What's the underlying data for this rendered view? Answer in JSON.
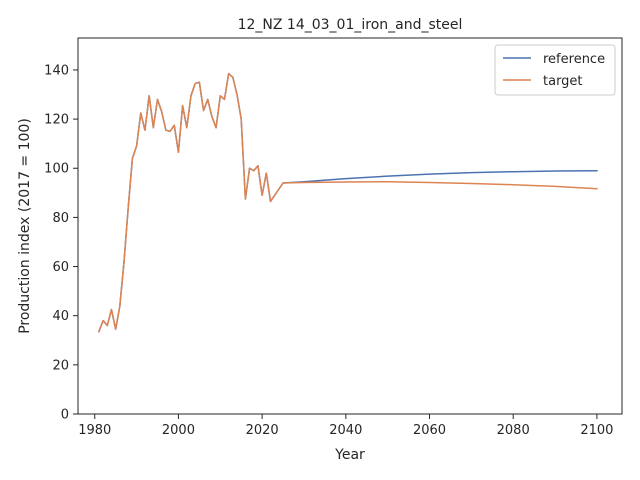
{
  "chart_data": {
    "type": "line",
    "title": "12_NZ 14_03_01_iron_and_steel",
    "xlabel": "Year",
    "ylabel": "Production index (2017 = 100)",
    "xlim": [
      1976,
      2106
    ],
    "ylim": [
      0,
      153
    ],
    "xticks": [
      1980,
      2000,
      2020,
      2040,
      2060,
      2080,
      2100
    ],
    "yticks": [
      0,
      20,
      40,
      60,
      80,
      100,
      120,
      140
    ],
    "grid": false,
    "legend_position": "upper right",
    "series": [
      {
        "name": "reference",
        "color": "#4c72b0",
        "x": [
          1981,
          1982,
          1983,
          1984,
          1985,
          1986,
          1987,
          1988,
          1989,
          1990,
          1991,
          1992,
          1993,
          1994,
          1995,
          1996,
          1997,
          1998,
          1999,
          2000,
          2001,
          2002,
          2003,
          2004,
          2005,
          2006,
          2007,
          2008,
          2009,
          2010,
          2011,
          2012,
          2013,
          2014,
          2015,
          2016,
          2017,
          2018,
          2019,
          2020,
          2021,
          2022,
          2025,
          2030,
          2040,
          2050,
          2060,
          2070,
          2080,
          2090,
          2100
        ],
        "y": [
          33.5,
          38,
          36,
          42.5,
          34.5,
          44,
          62,
          84,
          104,
          109,
          122.5,
          115.5,
          129.5,
          116.5,
          128,
          123,
          115.5,
          115,
          117.5,
          106.5,
          125.5,
          116.5,
          129.5,
          134.5,
          135,
          123.5,
          128,
          121,
          116.5,
          129.5,
          128,
          138.5,
          137,
          130,
          120,
          87.5,
          100,
          99,
          101,
          89,
          98,
          86.5,
          94,
          94.5,
          95.8,
          96.8,
          97.6,
          98.2,
          98.6,
          98.9,
          99
        ]
      },
      {
        "name": "target",
        "color": "#dd8452",
        "x": [
          1981,
          1982,
          1983,
          1984,
          1985,
          1986,
          1987,
          1988,
          1989,
          1990,
          1991,
          1992,
          1993,
          1994,
          1995,
          1996,
          1997,
          1998,
          1999,
          2000,
          2001,
          2002,
          2003,
          2004,
          2005,
          2006,
          2007,
          2008,
          2009,
          2010,
          2011,
          2012,
          2013,
          2014,
          2015,
          2016,
          2017,
          2018,
          2019,
          2020,
          2021,
          2022,
          2025,
          2030,
          2040,
          2050,
          2060,
          2070,
          2080,
          2090,
          2100
        ],
        "y": [
          33.5,
          38,
          36,
          42.5,
          34.5,
          44,
          62,
          84,
          104,
          109,
          122.5,
          115.5,
          129.5,
          116.5,
          128,
          123,
          115.5,
          115,
          117.5,
          106.5,
          125.5,
          116.5,
          129.5,
          134.5,
          135,
          123.5,
          128,
          121,
          116.5,
          129.5,
          128,
          138.5,
          137,
          130,
          120,
          87.5,
          100,
          99,
          101,
          89,
          98,
          86.5,
          94,
          94.2,
          94.4,
          94.5,
          94.2,
          93.8,
          93.3,
          92.6,
          91.7
        ]
      }
    ]
  }
}
